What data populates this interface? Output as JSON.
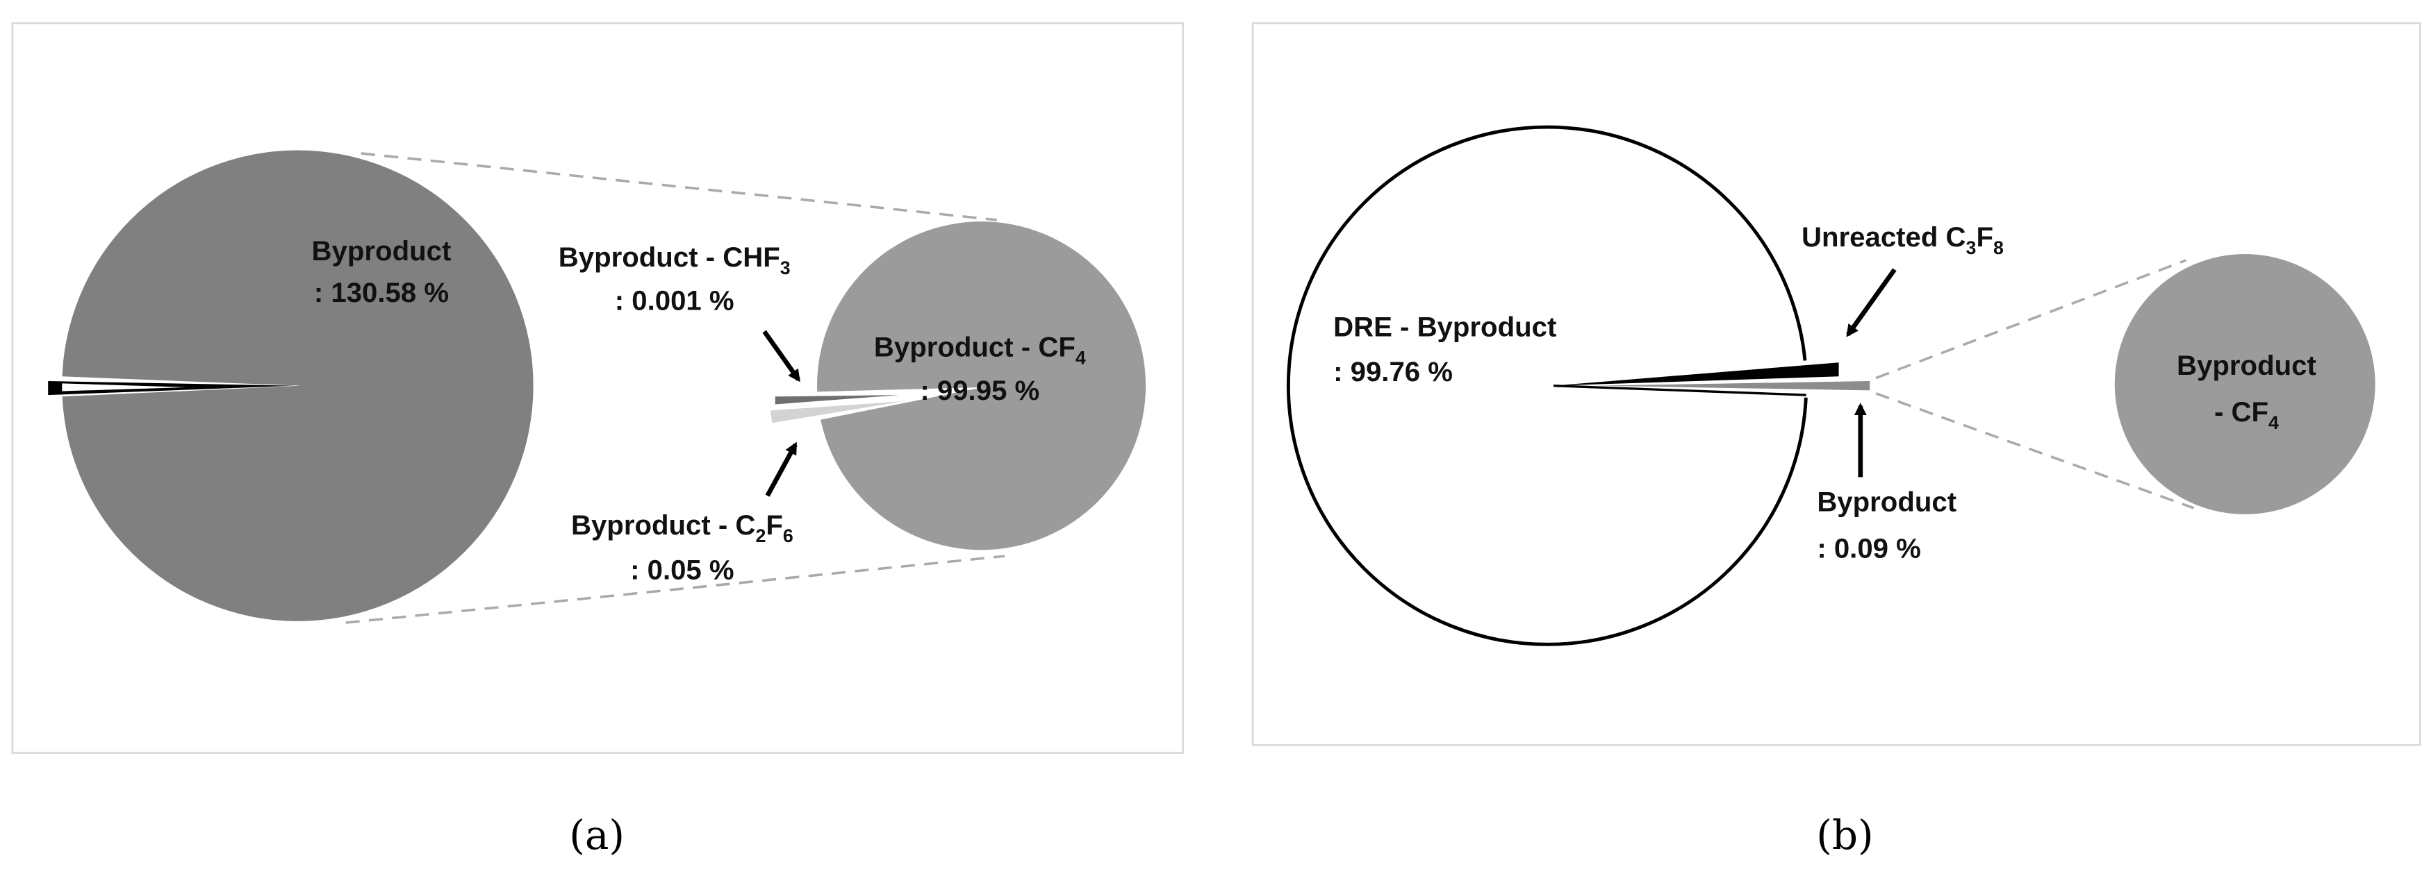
{
  "chart_data": [
    {
      "type": "pie",
      "panel": "(a)",
      "colors": {
        "byproduct": "#808080",
        "cf4": "#9b9b9b",
        "chf3": "#6f6f6f",
        "c2f6": "#d3d3d3",
        "other": "#000000"
      },
      "main_pie": {
        "slices": [
          {
            "label": "Byproduct",
            "value": 130.58,
            "value_text": ": 130.58 %"
          }
        ]
      },
      "sub_pie": {
        "slices": [
          {
            "label": "Byproduct - CF4",
            "parts": [
              "Byproduct - CF",
              "4"
            ],
            "value": 99.95,
            "value_text": ": 99.95 %"
          },
          {
            "label": "Byproduct - CHF3",
            "parts": [
              "Byproduct - CHF",
              "3"
            ],
            "value": 0.001,
            "value_text": ": 0.001 %"
          },
          {
            "label": "Byproduct - C2F6",
            "parts": [
              "Byproduct - C",
              "2",
              "F",
              "6"
            ],
            "value": 0.05,
            "value_text": ": 0.05 %"
          }
        ]
      }
    },
    {
      "type": "pie",
      "panel": "(b)",
      "colors": {
        "dre": "#ffffff",
        "unreacted": "#000000",
        "byproduct": "#8c8c8c",
        "cf4": "#9b9b9b"
      },
      "main_pie": {
        "slices": [
          {
            "label": "DRE - Byproduct",
            "value": 99.76,
            "value_text": ": 99.76 %"
          },
          {
            "label": "Unreacted C3F8",
            "parts": [
              "Unreacted C",
              "3",
              "F",
              "8"
            ]
          },
          {
            "label": "Byproduct",
            "value": 0.09,
            "value_text": ": 0.09 %"
          }
        ]
      },
      "sub_pie": {
        "slices": [
          {
            "label": "Byproduct - CF4",
            "parts": [
              "Byproduct",
              "- CF",
              "4"
            ]
          }
        ]
      }
    }
  ]
}
